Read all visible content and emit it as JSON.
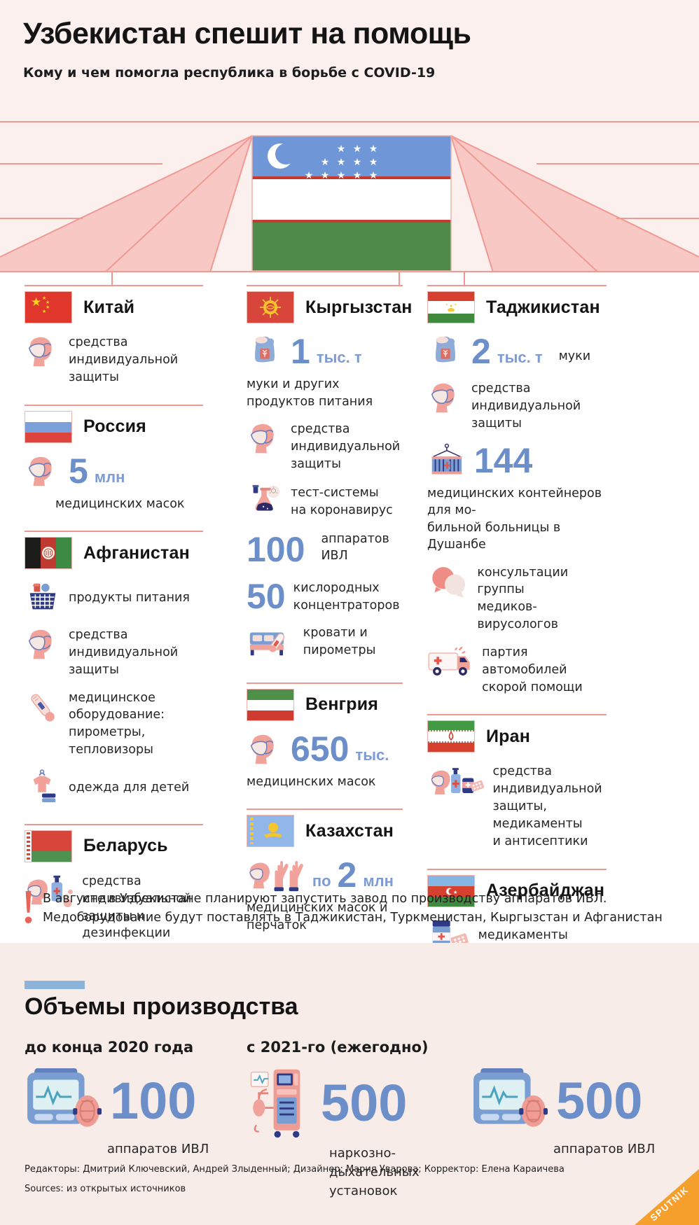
{
  "header": {
    "title": "Узбекистан спешит на помощь",
    "subtitle": "Кому и чем помогла республика в борьбе с COVID-19"
  },
  "columns": [
    [
      {
        "id": "china",
        "name": "Китай",
        "flag": "china",
        "items": [
          {
            "icon": "mask",
            "side": [
              "средства индивидуальной",
              "защиты"
            ]
          }
        ]
      },
      {
        "id": "russia",
        "name": "Россия",
        "flag": "russia",
        "items": [
          {
            "icon": "mask",
            "num": {
              "val": "5",
              "suf": "млн"
            },
            "below": [
              "медицинских масок"
            ],
            "belowIndent": 44
          }
        ]
      },
      {
        "id": "afghanistan",
        "name": "Афганистан",
        "flag": "afghanistan",
        "items": [
          {
            "icon": "basket",
            "side": [
              "продукты питания"
            ]
          },
          {
            "icon": "mask",
            "side": [
              "средства индивидуальной",
              "защиты"
            ]
          },
          {
            "icon": "thermometer",
            "side": [
              "медицинское оборудование:",
              "пирометры, тепловизоры"
            ]
          },
          {
            "icon": "clothes",
            "side": [
              "одежда для детей"
            ]
          }
        ]
      },
      {
        "id": "belarus",
        "name": "Беларусь",
        "flag": "belarus",
        "items": [
          {
            "icon": "mask-sanitizer",
            "side": [
              "средства индивидуальной",
              "защиты и дезинфекции"
            ]
          }
        ]
      }
    ],
    [
      {
        "id": "kyrgyzstan",
        "name": "Кыргызстан",
        "flag": "kyrgyzstan",
        "items": [
          {
            "icon": "flour",
            "num": {
              "val": "1",
              "suf": "тыс. т"
            },
            "below": [
              "муки и других продуктов питания"
            ]
          },
          {
            "icon": "mask",
            "side": [
              "средства индивидуальной",
              "защиты"
            ]
          },
          {
            "icon": "flask",
            "side": [
              "тест-системы",
              "на коронавирус"
            ]
          },
          {
            "num": {
              "val": "100"
            },
            "sideend": [
              "аппаратов ИВЛ"
            ]
          },
          {
            "num": {
              "val": "50"
            },
            "side": [
              "кислородных",
              "концентраторов"
            ]
          },
          {
            "icon": "bed",
            "sideend": [
              "кровати и пирометры"
            ]
          }
        ]
      },
      {
        "id": "hungary",
        "name": "Венгрия",
        "flag": "hungary",
        "items": [
          {
            "icon": "mask",
            "num": {
              "val": "650",
              "suf": "тыс."
            },
            "below": [
              "медицинских масок"
            ]
          }
        ]
      },
      {
        "id": "kazakhstan",
        "name": "Казахстан",
        "flag": "kazakhstan",
        "items": [
          {
            "icon": "mask-gloves",
            "num": {
              "pre": "по",
              "val": "2",
              "suf": "млн"
            },
            "below": [
              "медицинских масок и перчаток"
            ]
          }
        ]
      }
    ],
    [
      {
        "id": "tajikistan",
        "name": "Таджикистан",
        "flag": "tajikistan",
        "items": [
          {
            "icon": "flour",
            "num": {
              "val": "2",
              "suf": "тыс. т"
            },
            "sideend": [
              "муки"
            ]
          },
          {
            "icon": "mask",
            "side": [
              "средства индивидуальной",
              "защиты"
            ]
          },
          {
            "icon": "container",
            "num": {
              "val": "144"
            },
            "below": [
              "медицинских контейнеров для мо-",
              "бильной больницы в Душанбе"
            ]
          },
          {
            "icon": "bubbles",
            "side": [
              "консультации группы",
              "медиков-вирусологов"
            ]
          },
          {
            "icon": "ambulance",
            "side": [
              "партия автомобилей",
              "скорой помощи"
            ]
          }
        ]
      },
      {
        "id": "iran",
        "name": "Иран",
        "flag": "iran",
        "items": [
          {
            "icon": "mask-meds",
            "side": [
              "средства индивидуальной",
              "защиты, медикаменты",
              "и антисептики"
            ]
          }
        ]
      },
      {
        "id": "azerbaijan",
        "name": "Азербайджан",
        "flag": "azerbaijan",
        "items": [
          {
            "icon": "meds",
            "side": [
              "медикаменты"
            ]
          }
        ]
      }
    ]
  ],
  "note": {
    "line1": "В августе в Узбекистане планируют запустить завод по производству аппаратов ИВЛ.",
    "line2": "Медоборудование будут поставлять в Таджикистан, Туркменистан, Кыргызстан и Афганистан"
  },
  "production": {
    "title": "Объемы производства",
    "periods": [
      "до конца 2020 года",
      "с 2021-го (ежегодно)"
    ],
    "stats": [
      {
        "icon": "ventilator",
        "value": "100",
        "label": [
          "аппаратов ИВЛ"
        ]
      },
      {
        "icon": "anesthesia",
        "value": "500",
        "label": [
          "наркозно-дыхательных",
          "установок"
        ]
      },
      {
        "icon": "ventilator",
        "value": "500",
        "label": [
          "аппаратов ИВЛ"
        ]
      }
    ]
  },
  "footer": {
    "credits": "Редакторы: Дмитрий Ключевский, Андрей Злыденный; Дизайнер: Мария Уварова; Корректор: Елена Караичева",
    "sources": "Sources: из открытых источников",
    "brand": "SPUTNIK"
  },
  "colors": {
    "background_pink": "#fbf0ee",
    "bottom_pink": "#f8ece8",
    "ray_fill": "#f8c8c5",
    "ray_stroke": "#ef9a92",
    "divider": "#f0978f",
    "number_blue": "#6c8ec9",
    "unit_blue": "#7d9bd4",
    "accent_bar_blue": "#8cb3d9",
    "note_red": "#e8635a",
    "sputnik_orange": "#f5a02d"
  }
}
